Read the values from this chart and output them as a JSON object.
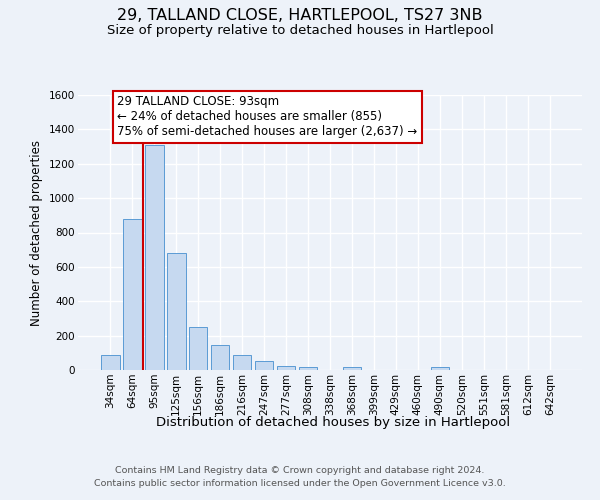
{
  "title": "29, TALLAND CLOSE, HARTLEPOOL, TS27 3NB",
  "subtitle": "Size of property relative to detached houses in Hartlepool",
  "xlabel": "Distribution of detached houses by size in Hartlepool",
  "ylabel": "Number of detached properties",
  "bin_labels": [
    "34sqm",
    "64sqm",
    "95sqm",
    "125sqm",
    "156sqm",
    "186sqm",
    "216sqm",
    "247sqm",
    "277sqm",
    "308sqm",
    "338sqm",
    "368sqm",
    "399sqm",
    "429sqm",
    "460sqm",
    "490sqm",
    "520sqm",
    "551sqm",
    "581sqm",
    "612sqm",
    "642sqm"
  ],
  "bar_heights": [
    85,
    880,
    1310,
    680,
    250,
    145,
    85,
    50,
    25,
    20,
    0,
    15,
    0,
    0,
    0,
    15,
    0,
    0,
    0,
    0,
    0
  ],
  "bar_color": "#c6d9f0",
  "bar_edge_color": "#5b9bd5",
  "vline_color": "#cc0000",
  "vline_x": 1.5,
  "annotation_line1": "29 TALLAND CLOSE: 93sqm",
  "annotation_line2": "← 24% of detached houses are smaller (855)",
  "annotation_line3": "75% of semi-detached houses are larger (2,637) →",
  "annotation_box_edge": "#cc0000",
  "annotation_box_face": "#ffffff",
  "ylim": [
    0,
    1600
  ],
  "yticks": [
    0,
    200,
    400,
    600,
    800,
    1000,
    1200,
    1400,
    1600
  ],
  "bg_color": "#edf2f9",
  "grid_color": "#ffffff",
  "title_fontsize": 11.5,
  "subtitle_fontsize": 9.5,
  "ylabel_fontsize": 8.5,
  "xlabel_fontsize": 9.5,
  "tick_fontsize": 7.5,
  "annotation_fontsize": 8.5,
  "footer_fontsize": 6.8,
  "footer": "Contains HM Land Registry data © Crown copyright and database right 2024.\nContains public sector information licensed under the Open Government Licence v3.0."
}
